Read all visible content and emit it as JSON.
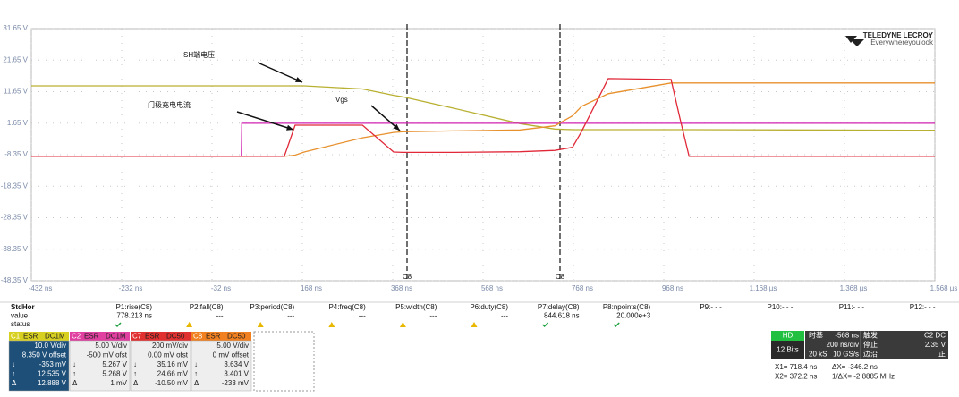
{
  "chart_data": {
    "type": "line",
    "xlim": [
      -432,
      1568
    ],
    "xticks": [
      {
        "value": -432,
        "label": "-432 ns"
      },
      {
        "value": -232,
        "label": "-232 ns"
      },
      {
        "value": -32,
        "label": "-32 ns"
      },
      {
        "value": 168,
        "label": "168 ns"
      },
      {
        "value": 368,
        "label": "368 ns"
      },
      {
        "value": 568,
        "label": "568 ns"
      },
      {
        "value": 768,
        "label": "768 ns"
      },
      {
        "value": 968,
        "label": "968 ns"
      },
      {
        "value": 1168,
        "label": "1.168 µs"
      },
      {
        "value": 1368,
        "label": "1.368 µs"
      },
      {
        "value": 1568,
        "label": "1.568 µs"
      }
    ],
    "ylim": [
      -48.35,
      31.65
    ],
    "yticks": [
      {
        "value": 31.65,
        "label": "31.65 V"
      },
      {
        "value": 21.65,
        "label": "21.65 V"
      },
      {
        "value": 11.65,
        "label": "11.65 V"
      },
      {
        "value": 1.65,
        "label": "1.65 V"
      },
      {
        "value": -8.35,
        "label": "-8.35 V"
      },
      {
        "value": -18.35,
        "label": "-18.35 V"
      },
      {
        "value": -28.35,
        "label": "-28.35 V"
      },
      {
        "value": -38.35,
        "label": "-38.35 V"
      },
      {
        "value": -48.35,
        "label": "-48.35 V"
      }
    ],
    "grid": true,
    "x": [
      -432,
      33,
      34,
      128,
      152,
      172,
      301,
      370,
      390,
      500,
      650,
      727,
      766,
      786,
      845,
      984,
      1004,
      1024,
      1568
    ],
    "series": [
      {
        "color": "#b8b030",
        "values": [
          13.5,
          13.5,
          13.5,
          13.5,
          13.5,
          13.5,
          12.5,
          10.5,
          10,
          6.5,
          1.5,
          -0.2,
          -0.4,
          -0.4,
          -0.4,
          -0.4,
          -0.4,
          -0.4,
          -0.6
        ]
      },
      {
        "color": "#d020b0",
        "values": [
          -8.9,
          -8.9,
          1.6,
          1.6,
          1.6,
          1.6,
          1.6,
          1.6,
          1.6,
          1.6,
          1.6,
          1.6,
          1.6,
          1.6,
          1.6,
          1.6,
          1.6,
          1.6,
          1.6
        ]
      },
      {
        "color": "#e8902c",
        "values": [
          -8.9,
          -8.9,
          -8.9,
          -8.9,
          -8.5,
          -7.5,
          -3,
          -1.3,
          -1.1,
          -0.8,
          -0.5,
          0.8,
          4,
          7,
          11,
          14.4,
          14.4,
          14.4,
          14.4
        ]
      },
      {
        "color": "#e02838",
        "values": [
          -8.9,
          -8.9,
          -8.9,
          -8.9,
          1.0,
          1.0,
          1.0,
          -7.5,
          -7.6,
          -7.6,
          -7.4,
          -7,
          -6,
          -1,
          15.8,
          15.5,
          3,
          -8.9,
          -8.9
        ]
      }
    ],
    "annotations": [
      "SH端电压",
      "门极充电电流",
      "Vgs"
    ]
  },
  "brand": {
    "name": "TELEDYNE LECROY",
    "tagline": "Everywhereyoulook"
  },
  "cursor_labels": [
    "C8",
    "C8"
  ],
  "measurements": {
    "row_labels": [
      "StdHor",
      "value",
      "status"
    ],
    "params": [
      "P1:rise(C8)",
      "P2:fall(C8)",
      "P3:period(C8)",
      "P4:freq(C8)",
      "P5:width(C8)",
      "P6:duty(C8)",
      "P7:delay(C8)",
      "P8:npoints(C8)",
      "P9:- - -",
      "P10:- - -",
      "P11:- - -",
      "P12:- - -"
    ],
    "values": [
      "778.213 ns",
      "---",
      "---",
      "---",
      "---",
      "---",
      "844.618 ns",
      "20.000e+3"
    ]
  },
  "readout_symbols": [
    "↓",
    "↑",
    "Δ"
  ],
  "channels": [
    {
      "header": [
        "C1",
        "ESR",
        "DC1M"
      ],
      "lines": [
        "10.0 V/div",
        "8.350 V offset",
        "-353 mV",
        "12.535 V",
        "12.888 V"
      ]
    },
    {
      "header": [
        "C2",
        "ESR",
        "DC1M"
      ],
      "lines": [
        "5.00 V/div",
        "-500 mV ofst",
        "5.267 V",
        "5.268 V",
        "1 mV"
      ]
    },
    {
      "header": [
        "C7",
        "ESR",
        "DC50"
      ],
      "lines": [
        "200 mV/div",
        "0.00 mV ofst",
        "35.16 mV",
        "24.66 mV",
        "-10.50 mV"
      ]
    },
    {
      "header": [
        "C8",
        "ESR",
        "DC50"
      ],
      "lines": [
        "5.00 V/div",
        "0 mV offset",
        "3.634 V",
        "3.401 V",
        "-233 mV"
      ]
    }
  ],
  "timebase": {
    "mode": "HD",
    "bits": "12 Bits",
    "label": "时基",
    "delay": "-568 ns",
    "scale": "200 ns/div",
    "samples": "20 kS",
    "rate": "10 GS/s",
    "trigger_label": "触发",
    "trigger_source": "C2 DC",
    "state": "停止",
    "level": "2.35 V",
    "type": "边沿",
    "slope": "正"
  },
  "cursors": [
    [
      "X1= 718.4 ns",
      "ΔX= -346.2 ns"
    ],
    [
      "X2= 372.2 ns",
      "1/ΔX= -2.8885 MHz"
    ]
  ]
}
